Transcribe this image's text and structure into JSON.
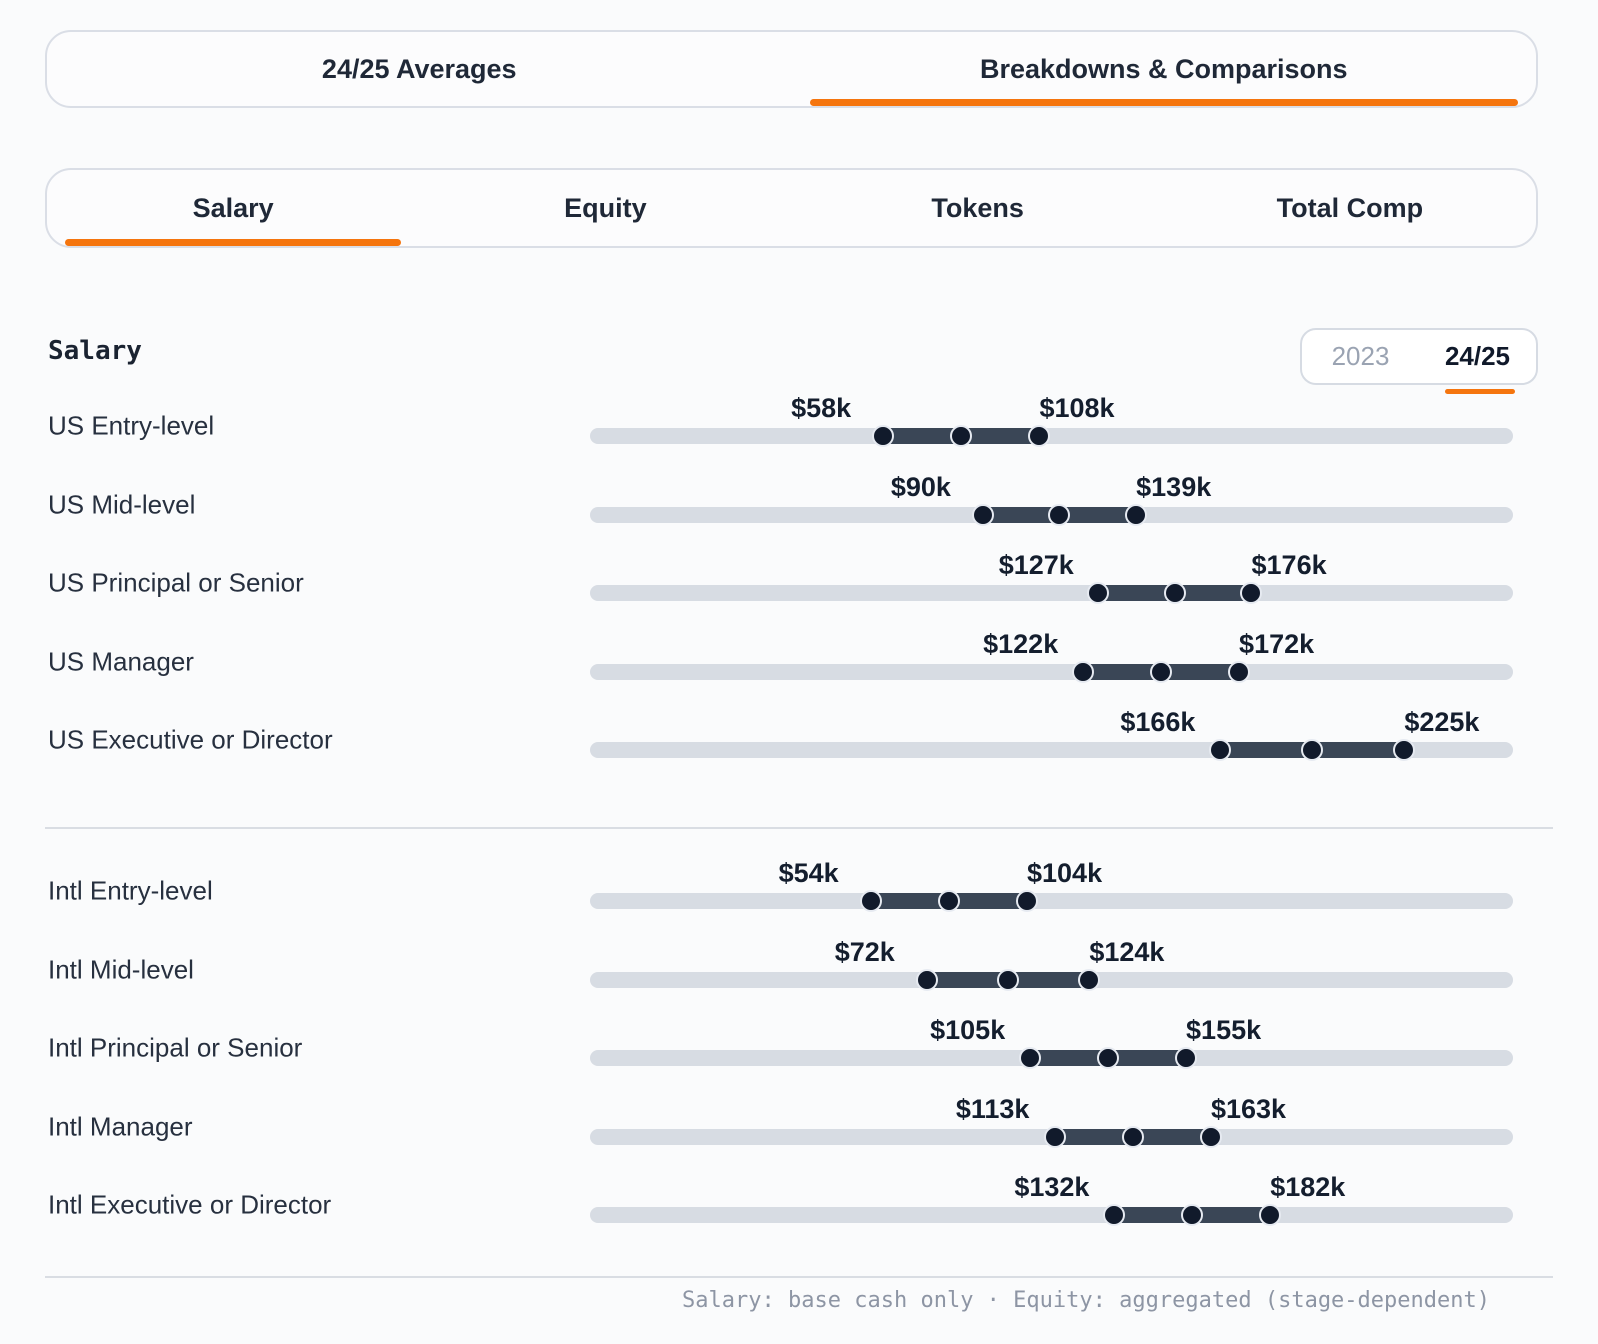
{
  "top_tabs": {
    "items": [
      {
        "label": "24/25 Averages",
        "active": false
      },
      {
        "label": "Breakdowns & Comparisons",
        "active": true
      }
    ]
  },
  "metric_tabs": {
    "items": [
      {
        "label": "Salary",
        "active": true
      },
      {
        "label": "Equity",
        "active": false
      },
      {
        "label": "Tokens",
        "active": false
      },
      {
        "label": "Total Comp",
        "active": false
      }
    ]
  },
  "section": {
    "title": "Salary"
  },
  "year_toggle": {
    "options": [
      {
        "label": "2023",
        "active": false
      },
      {
        "label": "24/25",
        "active": true
      }
    ]
  },
  "footer": {
    "note": "Salary: base cash only · Equity: aggregated (stage-dependent)"
  },
  "colors": {
    "accent": "#f5750e",
    "track": "#d7dce3",
    "range_bar": "#3a4656",
    "handle": "#111a2b",
    "handle_ring": "#e6eaf1",
    "divider": "#d9dde3",
    "text_dark": "#141e2e",
    "text_gray": "#9aa3b2"
  },
  "chart_data": {
    "type": "bar",
    "subtype": "horizontal-range-dumbbell",
    "title": "Salary",
    "year": "24/25",
    "unit": "USD thousands",
    "axis": {
      "min": -36,
      "max": 260
    },
    "groups": [
      {
        "rows": [
          {
            "label": "US Entry-level",
            "low": 58,
            "high": 108,
            "low_label": "$58k",
            "high_label": "$108k"
          },
          {
            "label": "US Mid-level",
            "low": 90,
            "high": 139,
            "low_label": "$90k",
            "high_label": "$139k"
          },
          {
            "label": "US Principal or Senior",
            "low": 127,
            "high": 176,
            "low_label": "$127k",
            "high_label": "$176k"
          },
          {
            "label": "US Manager",
            "low": 122,
            "high": 172,
            "low_label": "$122k",
            "high_label": "$172k"
          },
          {
            "label": "US Executive or Director",
            "low": 166,
            "high": 225,
            "low_label": "$166k",
            "high_label": "$225k"
          }
        ]
      },
      {
        "rows": [
          {
            "label": "Intl Entry-level",
            "low": 54,
            "high": 104,
            "low_label": "$54k",
            "high_label": "$104k"
          },
          {
            "label": "Intl Mid-level",
            "low": 72,
            "high": 124,
            "low_label": "$72k",
            "high_label": "$124k"
          },
          {
            "label": "Intl Principal or Senior",
            "low": 105,
            "high": 155,
            "low_label": "$105k",
            "high_label": "$155k"
          },
          {
            "label": "Intl Manager",
            "low": 113,
            "high": 163,
            "low_label": "$113k",
            "high_label": "$163k"
          },
          {
            "label": "Intl Executive or Director",
            "low": 132,
            "high": 182,
            "low_label": "$132k",
            "high_label": "$182k"
          }
        ]
      }
    ]
  }
}
